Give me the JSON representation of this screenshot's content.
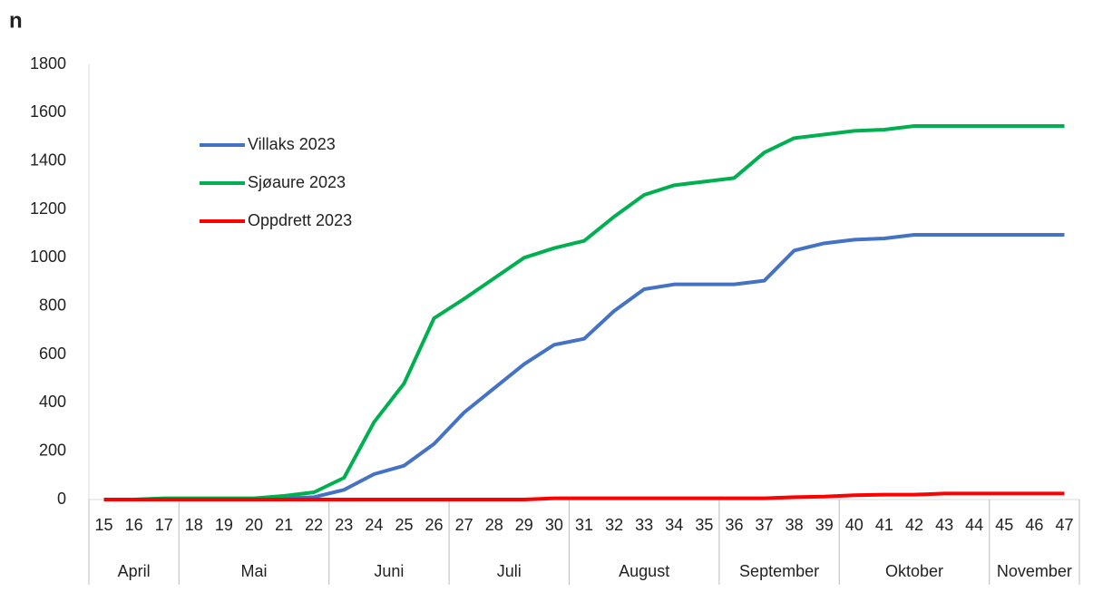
{
  "chart_data": {
    "type": "line",
    "title": "n",
    "categories": [
      "15",
      "16",
      "17",
      "18",
      "19",
      "20",
      "21",
      "22",
      "23",
      "24",
      "25",
      "26",
      "27",
      "28",
      "29",
      "30",
      "31",
      "32",
      "33",
      "34",
      "35",
      "36",
      "37",
      "38",
      "39",
      "40",
      "41",
      "42",
      "43",
      "44",
      "45",
      "46",
      "47"
    ],
    "month_groups": [
      {
        "label": "April",
        "first": "15",
        "last": "17"
      },
      {
        "label": "Mai",
        "first": "18",
        "last": "22"
      },
      {
        "label": "Juni",
        "first": "23",
        "last": "26"
      },
      {
        "label": "Juli",
        "first": "27",
        "last": "30"
      },
      {
        "label": "August",
        "first": "31",
        "last": "35"
      },
      {
        "label": "September",
        "first": "36",
        "last": "39"
      },
      {
        "label": "Oktober",
        "first": "40",
        "last": "44"
      },
      {
        "label": "November",
        "first": "45",
        "last": "47"
      }
    ],
    "series": [
      {
        "name": "Villaks 2023",
        "color": "#4472c4",
        "values": [
          0,
          0,
          2,
          3,
          3,
          3,
          5,
          10,
          40,
          105,
          140,
          230,
          360,
          460,
          560,
          640,
          665,
          780,
          870,
          890,
          890,
          890,
          905,
          1030,
          1060,
          1075,
          1080,
          1095,
          1095,
          1095,
          1095,
          1095,
          1095
        ]
      },
      {
        "name": "Sjøaure 2023",
        "color": "#00b050",
        "values": [
          0,
          0,
          5,
          5,
          5,
          5,
          15,
          30,
          90,
          320,
          480,
          750,
          830,
          915,
          1000,
          1040,
          1070,
          1170,
          1260,
          1300,
          1315,
          1330,
          1435,
          1495,
          1510,
          1525,
          1530,
          1545,
          1545,
          1545,
          1545,
          1545,
          1545
        ]
      },
      {
        "name": "Oppdrett 2023",
        "color": "#ff0000",
        "values": [
          0,
          0,
          0,
          0,
          0,
          0,
          0,
          0,
          0,
          0,
          0,
          0,
          0,
          0,
          0,
          5,
          5,
          5,
          5,
          5,
          5,
          5,
          5,
          10,
          12,
          18,
          20,
          20,
          25,
          25,
          25,
          25,
          25
        ]
      }
    ],
    "ylim": [
      0,
      1800
    ],
    "yticks": [
      0,
      200,
      400,
      600,
      800,
      1000,
      1200,
      1400,
      1600,
      1800
    ],
    "grid": false
  }
}
